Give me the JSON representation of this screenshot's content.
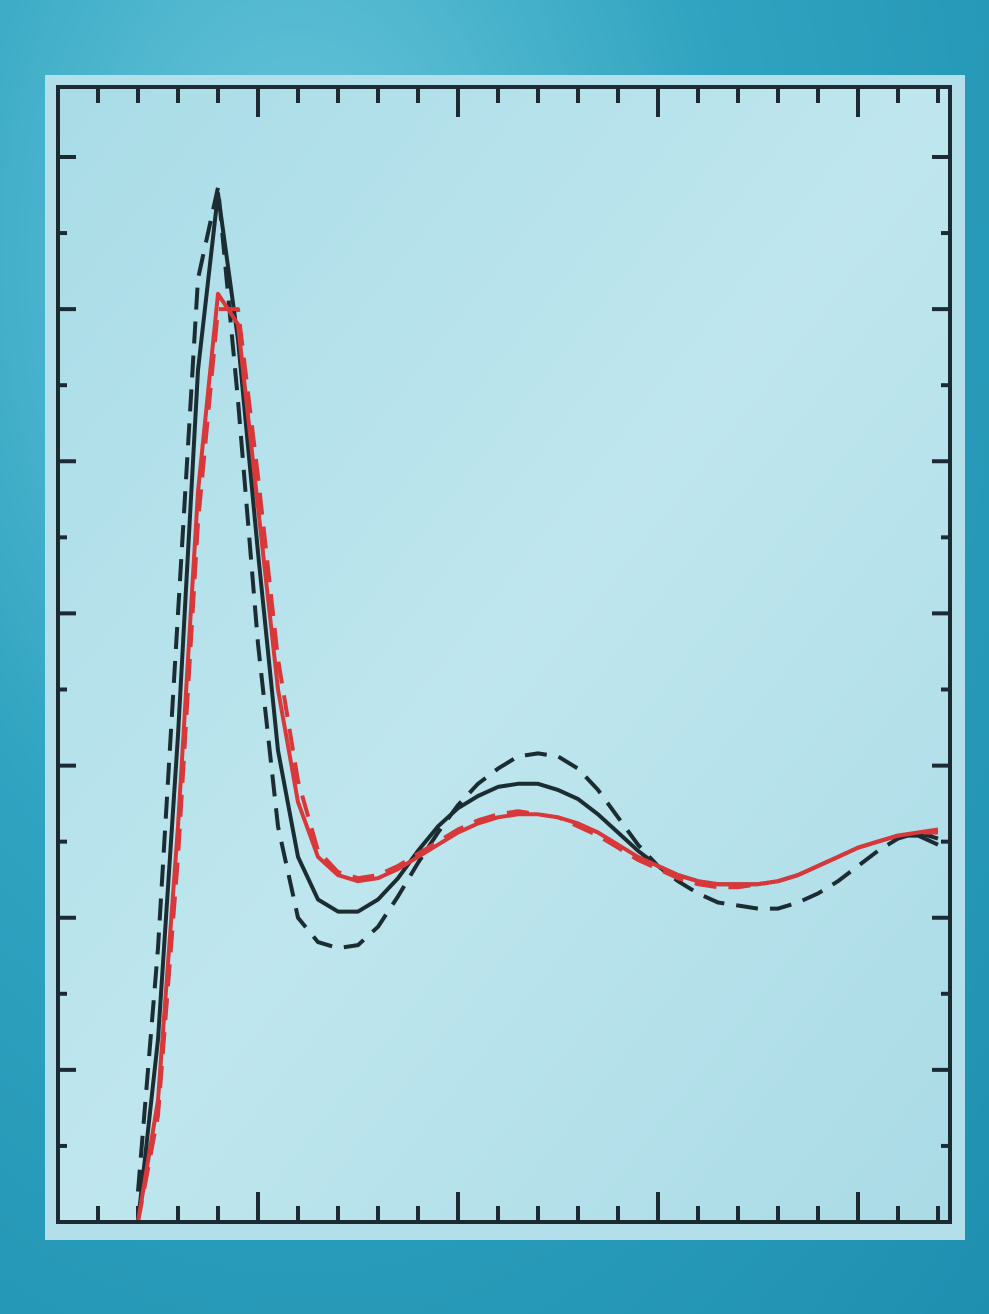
{
  "chart_data": {
    "type": "line",
    "x": [
      2.4,
      2.5,
      2.6,
      2.7,
      2.8,
      2.9,
      3.0,
      3.1,
      3.2,
      3.3,
      3.4,
      3.5,
      3.6,
      3.7,
      3.8,
      3.9,
      4.0,
      4.1,
      4.2,
      4.3,
      4.4,
      4.5,
      4.6,
      4.7,
      4.8,
      4.9,
      5.0,
      5.1,
      5.2,
      5.3,
      5.4,
      5.5,
      5.6,
      5.7,
      5.8,
      5.9,
      6.0,
      6.1,
      6.2,
      6.3,
      6.4
    ],
    "series": [
      {
        "color": "#1b2d33",
        "dashed": false,
        "values": [
          0,
          0.6,
          1.6,
          2.8,
          3.38,
          2.9,
          2.2,
          1.55,
          1.2,
          1.06,
          1.02,
          1.02,
          1.06,
          1.13,
          1.22,
          1.3,
          1.36,
          1.4,
          1.43,
          1.44,
          1.44,
          1.42,
          1.39,
          1.34,
          1.28,
          1.22,
          1.17,
          1.14,
          1.12,
          1.11,
          1.11,
          1.11,
          1.12,
          1.14,
          1.17,
          1.2,
          1.23,
          1.25,
          1.27,
          1.27,
          1.24
        ]
      },
      {
        "color": "#1b2d33",
        "dashed": true,
        "values": [
          0.1,
          0.9,
          2.0,
          3.1,
          3.4,
          2.7,
          1.9,
          1.3,
          1.0,
          0.92,
          0.9,
          0.91,
          0.97,
          1.07,
          1.18,
          1.28,
          1.37,
          1.44,
          1.49,
          1.53,
          1.54,
          1.53,
          1.49,
          1.42,
          1.33,
          1.24,
          1.17,
          1.12,
          1.08,
          1.05,
          1.04,
          1.03,
          1.03,
          1.05,
          1.08,
          1.12,
          1.17,
          1.22,
          1.26,
          1.28,
          1.26
        ]
      },
      {
        "color": "#d9383a",
        "dashed": false,
        "values": [
          0,
          0.4,
          1.3,
          2.4,
          3.05,
          2.95,
          2.35,
          1.75,
          1.38,
          1.2,
          1.14,
          1.12,
          1.13,
          1.16,
          1.2,
          1.24,
          1.28,
          1.31,
          1.33,
          1.34,
          1.34,
          1.33,
          1.31,
          1.28,
          1.24,
          1.2,
          1.17,
          1.14,
          1.12,
          1.11,
          1.11,
          1.11,
          1.12,
          1.14,
          1.17,
          1.2,
          1.23,
          1.25,
          1.27,
          1.28,
          1.29
        ]
      },
      {
        "color": "#d9383a",
        "dashed": true,
        "values": [
          0,
          0.35,
          1.2,
          2.3,
          3.0,
          3.0,
          2.45,
          1.85,
          1.45,
          1.22,
          1.15,
          1.13,
          1.14,
          1.17,
          1.21,
          1.25,
          1.29,
          1.32,
          1.34,
          1.35,
          1.34,
          1.33,
          1.3,
          1.27,
          1.23,
          1.19,
          1.16,
          1.13,
          1.11,
          1.1,
          1.1,
          1.11,
          1.12,
          1.14,
          1.17,
          1.2,
          1.23,
          1.25,
          1.27,
          1.28,
          1.28
        ]
      }
    ],
    "xlim": [
      2,
      6.46
    ],
    "xticks": [
      2,
      3,
      4,
      5,
      6
    ],
    "xminorticks": [
      2.2,
      2.4,
      2.6,
      2.8,
      3.2,
      3.4,
      3.6,
      3.8,
      4.2,
      4.4,
      4.6,
      4.8,
      5.2,
      5.4,
      5.6,
      5.8,
      6.2,
      6.4
    ],
    "ylim": [
      0,
      3.73
    ],
    "yticks": [
      0,
      0.5,
      1,
      1.5,
      2,
      2.5,
      3,
      3.5
    ],
    "yminorticks": [
      0.25,
      0.75,
      1.25,
      1.75,
      2.25,
      2.75,
      3.25
    ],
    "frame_color": "#1c2b33"
  }
}
